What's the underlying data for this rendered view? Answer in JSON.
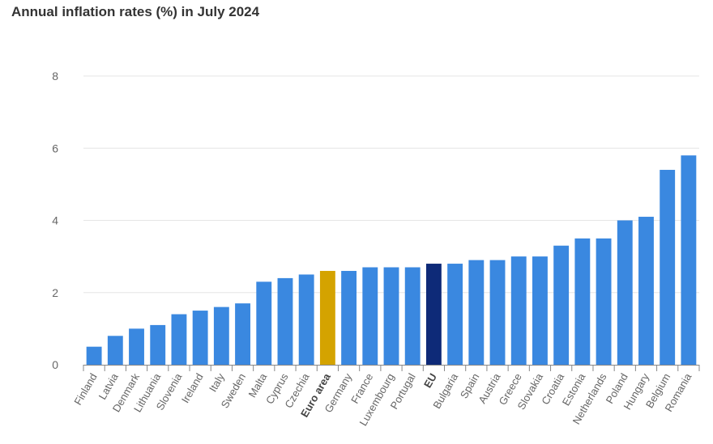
{
  "chart_data": {
    "type": "bar",
    "title": "Annual inflation rates (%) in July 2024",
    "xlabel": "",
    "ylabel": "",
    "ylim": [
      0,
      8
    ],
    "yticks": [
      0,
      2,
      4,
      6,
      8
    ],
    "grid": true,
    "legend": "none",
    "categories": [
      "Finland",
      "Latvia",
      "Denmark",
      "Lithuania",
      "Slovenia",
      "Ireland",
      "Italy",
      "Sweden",
      "Malta",
      "Cyprus",
      "Czechia",
      "Euro area",
      "Germany",
      "France",
      "Luxembourg",
      "Portugal",
      "EU",
      "Bulgaria",
      "Spain",
      "Austria",
      "Greece",
      "Slovakia",
      "Croatia",
      "Estonia",
      "Netherlands",
      "Poland",
      "Hungary",
      "Belgium",
      "Romania"
    ],
    "values": [
      0.5,
      0.8,
      1.0,
      1.1,
      1.4,
      1.5,
      1.6,
      1.7,
      2.3,
      2.4,
      2.5,
      2.6,
      2.6,
      2.7,
      2.7,
      2.7,
      2.8,
      2.8,
      2.9,
      2.9,
      3.0,
      3.0,
      3.3,
      3.5,
      3.5,
      4.0,
      4.1,
      5.4,
      5.8
    ],
    "highlight": {
      "Euro area": "#d4a300",
      "EU": "#0e2a78"
    },
    "bold_labels": [
      "Euro area",
      "EU"
    ],
    "default_color": "#3a88e0"
  }
}
